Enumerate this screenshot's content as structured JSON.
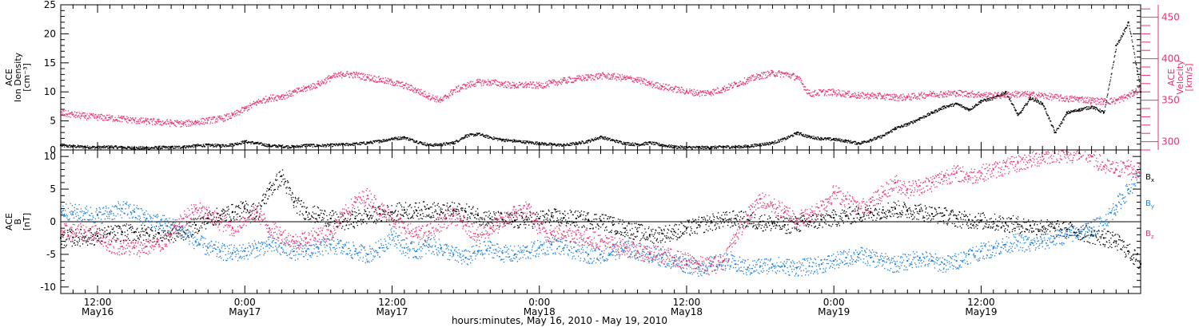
{
  "chart_data": [
    {
      "type": "scatter",
      "ylabel_lines": [
        "ACE",
        "Ion Density",
        "[cm⁻³]"
      ],
      "ylim": [
        0,
        25
      ],
      "yticks": [
        0,
        5,
        10,
        15,
        20,
        25
      ],
      "y2label_lines": [
        "ACE",
        "Velocity",
        "[km/s]"
      ],
      "y2lim": [
        290,
        465
      ],
      "y2ticks": [
        300,
        350,
        400,
        450
      ],
      "y2color": "#e8336b",
      "series": [
        {
          "color": "#000000",
          "axis": "left",
          "x": [
            0,
            1,
            2,
            3,
            4,
            5,
            6,
            7,
            8,
            9,
            10,
            11,
            12,
            13,
            14,
            15,
            16,
            17,
            18,
            19,
            20,
            21,
            22,
            23,
            24,
            25,
            26,
            27,
            28,
            29,
            30,
            31,
            32,
            33,
            34,
            35,
            36,
            37,
            38,
            39,
            40,
            41,
            42,
            43,
            44,
            45,
            46,
            47,
            48,
            49,
            50,
            51,
            52,
            53,
            54,
            55,
            56,
            57,
            58,
            59,
            60,
            61,
            62,
            63,
            64,
            65,
            66,
            67,
            68,
            69,
            70,
            71,
            72,
            73,
            74,
            75,
            76,
            77,
            78,
            79,
            80,
            81,
            82,
            83,
            84,
            85,
            86,
            87,
            88
          ],
          "values": [
            0.8,
            0.7,
            0.6,
            0.5,
            0.6,
            0.5,
            0.4,
            0.4,
            0.5,
            0.5,
            0.6,
            0.8,
            0.9,
            0.8,
            1.0,
            1.5,
            1.2,
            0.8,
            0.7,
            0.6,
            0.9,
            0.8,
            0.9,
            1.0,
            1.1,
            1.3,
            1.6,
            2.0,
            2.2,
            1.5,
            0.9,
            1.0,
            1.3,
            2.5,
            2.8,
            2.2,
            1.8,
            1.6,
            1.4,
            1.2,
            1.0,
            0.9,
            1.2,
            1.6,
            2.3,
            1.7,
            1.2,
            1.0,
            1.3,
            0.9,
            0.6,
            0.5,
            0.5,
            0.5,
            0.6,
            0.6,
            0.7,
            1.0,
            1.3,
            2.0,
            3.0,
            2.3,
            2.0,
            1.9,
            1.6,
            1.2,
            1.8,
            2.5,
            3.8,
            4.5,
            5.5,
            6.5,
            7.5,
            8.0,
            7.0,
            8.5,
            9.0,
            10.0,
            6.0,
            9.0,
            8.0,
            3.0,
            6.5,
            7.0,
            7.5,
            6.5,
            18.0,
            22.0,
            10.0
          ]
        },
        {
          "color": "#e8336b",
          "axis": "right",
          "x": [
            0,
            1,
            2,
            3,
            4,
            5,
            6,
            7,
            8,
            9,
            10,
            11,
            12,
            13,
            14,
            15,
            16,
            17,
            18,
            19,
            20,
            21,
            22,
            23,
            24,
            25,
            26,
            27,
            28,
            29,
            30,
            31,
            32,
            33,
            34,
            35,
            36,
            37,
            38,
            39,
            40,
            41,
            42,
            43,
            44,
            45,
            46,
            47,
            48,
            49,
            50,
            51,
            52,
            53,
            54,
            55,
            56,
            57,
            58,
            59,
            60,
            61,
            62,
            63,
            64,
            65,
            66,
            67,
            68,
            69,
            70,
            71,
            72,
            73,
            74,
            75,
            76,
            77,
            78,
            79,
            80,
            81,
            82,
            83,
            84,
            85,
            86,
            87,
            88
          ],
          "values": [
            335,
            333,
            331,
            330,
            329,
            328,
            326,
            325,
            324,
            323,
            322,
            324,
            326,
            328,
            332,
            340,
            348,
            353,
            355,
            360,
            365,
            370,
            378,
            382,
            381,
            378,
            375,
            372,
            368,
            362,
            355,
            350,
            362,
            368,
            372,
            372,
            370,
            368,
            369,
            368,
            371,
            374,
            376,
            378,
            380,
            379,
            377,
            375,
            370,
            367,
            364,
            361,
            359,
            360,
            364,
            370,
            375,
            380,
            383,
            382,
            378,
            358,
            360,
            360,
            358,
            356,
            356,
            355,
            354,
            354,
            356,
            358,
            358,
            359,
            358,
            357,
            356,
            357,
            358,
            357,
            356,
            354,
            352,
            352,
            350,
            349,
            350,
            356,
            365
          ]
        }
      ]
    },
    {
      "type": "scatter",
      "ylabel_lines": [
        "ACE",
        "B",
        "[nT]"
      ],
      "ylim": [
        -11,
        11
      ],
      "yticks": [
        -10,
        -5,
        0,
        5,
        10
      ],
      "zero_line": true,
      "legend_placement": "right",
      "series": [
        {
          "name": "Bx",
          "color": "#000000",
          "x": [
            0,
            1,
            2,
            3,
            4,
            5,
            6,
            7,
            8,
            9,
            10,
            11,
            12,
            13,
            14,
            15,
            16,
            17,
            18,
            19,
            20,
            21,
            22,
            23,
            24,
            25,
            26,
            27,
            28,
            29,
            30,
            31,
            32,
            33,
            34,
            35,
            36,
            37,
            38,
            39,
            40,
            41,
            42,
            43,
            44,
            45,
            46,
            47,
            48,
            49,
            50,
            51,
            52,
            53,
            54,
            55,
            56,
            57,
            58,
            59,
            60,
            61,
            62,
            63,
            64,
            65,
            66,
            67,
            68,
            69,
            70,
            71,
            72,
            73,
            74,
            75,
            76,
            77,
            78,
            79,
            80,
            81,
            82,
            83,
            84,
            85,
            86,
            87,
            88
          ],
          "values": [
            -2.5,
            -2.4,
            -2.3,
            -2.2,
            -1.8,
            -1.6,
            -1.6,
            -1.7,
            -1.8,
            -1.9,
            -1.5,
            -0.5,
            0.5,
            1.0,
            1.5,
            2.0,
            1.5,
            5.0,
            7.0,
            3.0,
            1.5,
            1.0,
            0.5,
            0.0,
            0.5,
            1.0,
            1.2,
            1.5,
            1.8,
            1.7,
            2.0,
            1.5,
            1.8,
            1.5,
            1.0,
            0.5,
            0.3,
            0.2,
            0.3,
            0.5,
            0.8,
            0.6,
            0.5,
            0.3,
            0.2,
            -0.5,
            -1.0,
            -1.5,
            -2.0,
            -1.8,
            -1.5,
            -1.0,
            -0.5,
            0.0,
            0.3,
            0.5,
            0.3,
            0.0,
            -0.2,
            -0.5,
            -0.3,
            0.0,
            0.3,
            0.6,
            0.9,
            1.2,
            1.5,
            1.8,
            2.0,
            1.8,
            1.6,
            1.2,
            1.0,
            0.5,
            0.3,
            0.2,
            0.0,
            -0.2,
            -0.4,
            -0.6,
            -0.8,
            -1.0,
            -1.2,
            -1.5,
            -2.0,
            -2.5,
            -3.0,
            -4.5,
            -6.5
          ]
        },
        {
          "name": "By",
          "color": "#1a7fe0",
          "x": [
            0,
            1,
            2,
            3,
            4,
            5,
            6,
            7,
            8,
            9,
            10,
            11,
            12,
            13,
            14,
            15,
            16,
            17,
            18,
            19,
            20,
            21,
            22,
            23,
            24,
            25,
            26,
            27,
            28,
            29,
            30,
            31,
            32,
            33,
            34,
            35,
            36,
            37,
            38,
            39,
            40,
            41,
            42,
            43,
            44,
            45,
            46,
            47,
            48,
            49,
            50,
            51,
            52,
            53,
            54,
            55,
            56,
            57,
            58,
            59,
            60,
            61,
            62,
            63,
            64,
            65,
            66,
            67,
            68,
            69,
            70,
            71,
            72,
            73,
            74,
            75,
            76,
            77,
            78,
            79,
            80,
            81,
            82,
            83,
            84,
            85,
            86,
            87,
            88
          ],
          "values": [
            1.8,
            1.5,
            1.3,
            1.0,
            1.5,
            2.0,
            1.5,
            0.5,
            0.0,
            -0.5,
            -1.5,
            -3.0,
            -4.0,
            -4.5,
            -4.8,
            -4.5,
            -4.0,
            -3.5,
            -4.0,
            -4.5,
            -4.5,
            -4.0,
            -3.5,
            -4.0,
            -4.5,
            -5.0,
            -4.0,
            -2.0,
            -4.0,
            -4.5,
            -3.5,
            -4.0,
            -5.0,
            -5.5,
            -4.5,
            -4.0,
            -4.8,
            -5.0,
            -4.5,
            -4.0,
            -3.5,
            -4.0,
            -4.5,
            -5.0,
            -5.0,
            -4.5,
            -4.0,
            -4.5,
            -5.0,
            -5.5,
            -6.0,
            -6.5,
            -7.0,
            -6.5,
            -6.0,
            -6.5,
            -7.0,
            -6.8,
            -6.5,
            -6.8,
            -7.0,
            -6.8,
            -6.5,
            -6.0,
            -5.5,
            -5.0,
            -5.5,
            -6.0,
            -6.5,
            -6.0,
            -5.5,
            -6.0,
            -6.5,
            -6.0,
            -5.0,
            -4.5,
            -4.0,
            -3.5,
            -3.0,
            -3.5,
            -3.0,
            -2.5,
            -2.0,
            -1.5,
            -1.0,
            0.0,
            2.5,
            5.0,
            7.5
          ]
        },
        {
          "name": "Bz",
          "color": "#e8336b",
          "x": [
            0,
            1,
            2,
            3,
            4,
            5,
            6,
            7,
            8,
            9,
            10,
            11,
            12,
            13,
            14,
            15,
            16,
            17,
            18,
            19,
            20,
            21,
            22,
            23,
            24,
            25,
            26,
            27,
            28,
            29,
            30,
            31,
            32,
            33,
            34,
            35,
            36,
            37,
            38,
            39,
            40,
            41,
            42,
            43,
            44,
            45,
            46,
            47,
            48,
            49,
            50,
            51,
            52,
            53,
            54,
            55,
            56,
            57,
            58,
            59,
            60,
            61,
            62,
            63,
            64,
            65,
            66,
            67,
            68,
            69,
            70,
            71,
            72,
            73,
            74,
            75,
            76,
            77,
            78,
            79,
            80,
            81,
            82,
            83,
            84,
            85,
            86,
            87,
            88
          ],
          "values": [
            -1.5,
            -1.5,
            -1.6,
            -1.8,
            -3.5,
            -3.8,
            -4.0,
            -3.8,
            -3.5,
            -2.0,
            0.5,
            2.0,
            1.0,
            0.0,
            -1.0,
            0.5,
            1.5,
            -1.0,
            -2.0,
            -3.0,
            -2.5,
            -2.0,
            -1.5,
            1.0,
            3.0,
            4.0,
            2.0,
            0.5,
            -1.0,
            -2.0,
            -1.5,
            0.0,
            1.0,
            -0.5,
            -2.0,
            -1.0,
            0.0,
            1.5,
            2.0,
            -1.0,
            -2.0,
            -1.5,
            -2.0,
            -2.5,
            -3.0,
            -3.5,
            -4.0,
            -4.5,
            -4.8,
            -5.0,
            -5.5,
            -6.0,
            -6.5,
            -6.8,
            -6.0,
            -2.0,
            1.0,
            3.5,
            2.5,
            1.5,
            0.5,
            1.0,
            2.5,
            4.5,
            3.5,
            2.0,
            3.0,
            4.5,
            6.0,
            5.0,
            5.5,
            6.0,
            7.0,
            7.5,
            7.0,
            7.5,
            8.0,
            8.5,
            9.0,
            9.5,
            10.0,
            10.5,
            10.3,
            10.5,
            10.0,
            8.5,
            8.0,
            8.5,
            7.5
          ]
        }
      ],
      "legend_labels": [
        "B",
        "B",
        "B"
      ],
      "legend_subscripts": [
        "x",
        "y",
        "z"
      ]
    }
  ],
  "x_axis": {
    "range": [
      0,
      88
    ],
    "ticks": [
      {
        "x": 3,
        "top": "12:00",
        "bottom": "May16"
      },
      {
        "x": 15,
        "top": "0:00",
        "bottom": "May17"
      },
      {
        "x": 27,
        "top": "12:00",
        "bottom": "May17"
      },
      {
        "x": 39,
        "top": "0:00",
        "bottom": "May18"
      },
      {
        "x": 51,
        "top": "12:00",
        "bottom": "May18"
      },
      {
        "x": 63,
        "top": "0:00",
        "bottom": "May19"
      },
      {
        "x": 75,
        "top": "12:00",
        "bottom": "May19"
      }
    ],
    "label": "hours:minutes, May 16, 2010 - May 19, 2010"
  }
}
